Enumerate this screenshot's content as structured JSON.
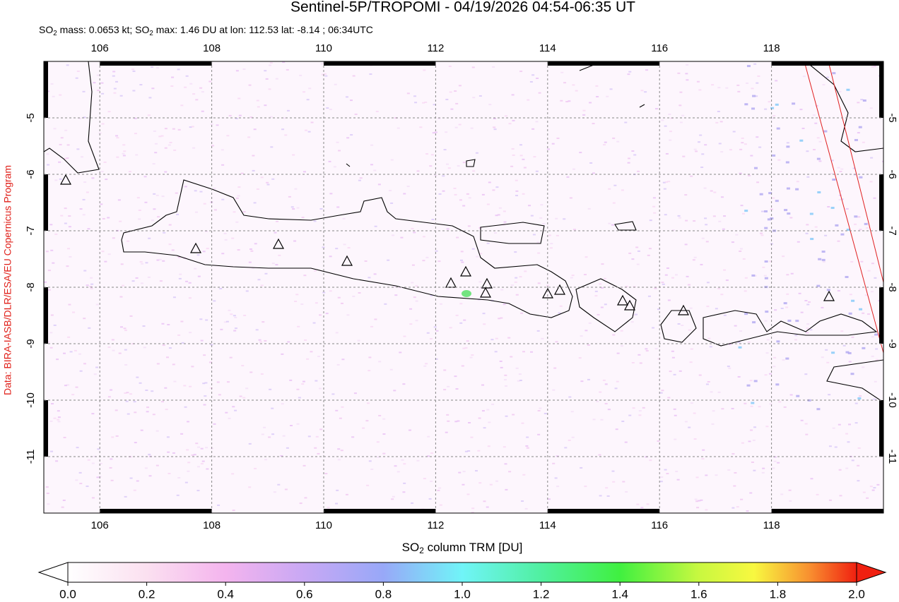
{
  "header": {
    "title": "Sentinel-5P/TROPOMI - 04/19/2026 04:54-06:35 UT",
    "subtitle": [
      "SO",
      "2",
      " mass: 0.0653 kt; SO",
      "2",
      " max: 1.46 DU at lon: 112.53 lat: -8.14 ; 06:34UTC"
    ]
  },
  "credit": "Data: BIRA-IASB/DLR/ESA/EU Copernicus Program",
  "map": {
    "xlim": [
      105,
      120
    ],
    "ylim": [
      -12,
      -4
    ],
    "xticks": [
      106,
      108,
      110,
      112,
      114,
      116,
      118
    ],
    "yticks": [
      -5,
      -6,
      -7,
      -8,
      -9,
      -10,
      -11
    ]
  },
  "colorbar": {
    "label": [
      "SO",
      "2",
      " column TRM [DU]"
    ],
    "lim": [
      0,
      2
    ],
    "ticks": [
      {
        "value": 0,
        "label": "0.0"
      },
      0.2,
      0.4,
      0.6,
      0.8,
      {
        "value": 1,
        "label": "1.0"
      },
      1.2,
      1.4,
      1.6,
      1.8,
      {
        "value": 2,
        "label": "2.0"
      }
    ]
  }
}
